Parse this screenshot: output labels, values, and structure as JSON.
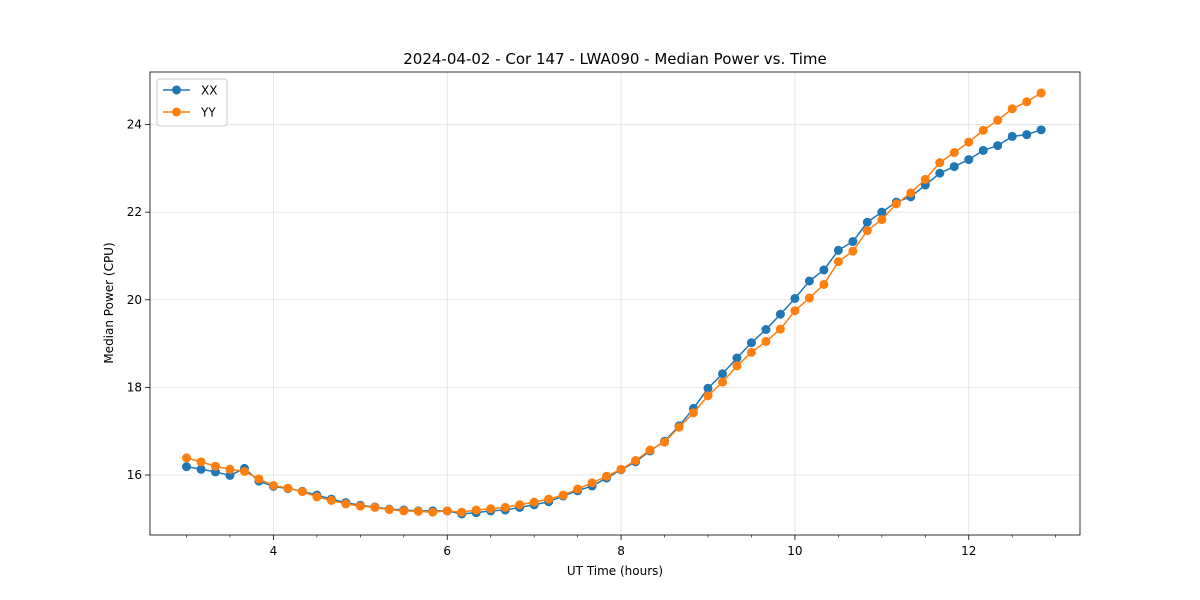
{
  "chart_data": {
    "type": "line",
    "title": "2024-04-02 - Cor 147 - LWA090 - Median Power vs. Time",
    "xlabel": "UT Time (hours)",
    "ylabel": "Median Power (CPU)",
    "xlim": [
      2.58,
      13.28
    ],
    "ylim": [
      14.63,
      25.2
    ],
    "xticks": [
      4,
      6,
      8,
      10,
      12
    ],
    "xtick_labels": [
      "4",
      "6",
      "8",
      "10",
      "12"
    ],
    "yticks": [
      16,
      18,
      20,
      22,
      24
    ],
    "ytick_labels": [
      "16",
      "18",
      "20",
      "22",
      "24"
    ],
    "grid": true,
    "legend_position": "top-left",
    "x": [
      3.0,
      3.167,
      3.333,
      3.5,
      3.667,
      3.833,
      4.0,
      4.167,
      4.333,
      4.5,
      4.667,
      4.833,
      5.0,
      5.167,
      5.333,
      5.5,
      5.667,
      5.833,
      6.0,
      6.167,
      6.333,
      6.5,
      6.667,
      6.833,
      7.0,
      7.167,
      7.333,
      7.5,
      7.667,
      7.833,
      8.0,
      8.167,
      8.333,
      8.5,
      8.667,
      8.833,
      9.0,
      9.167,
      9.333,
      9.5,
      9.667,
      9.833,
      10.0,
      10.167,
      10.333,
      10.5,
      10.667,
      10.833,
      11.0,
      11.167,
      11.333,
      11.5,
      11.667,
      11.833,
      12.0,
      12.167,
      12.333,
      12.5,
      12.667,
      12.833
    ],
    "series": [
      {
        "name": "XX",
        "color": "#1f77b4",
        "values": [
          16.19,
          16.13,
          16.07,
          15.99,
          16.15,
          15.86,
          15.74,
          15.69,
          15.63,
          15.54,
          15.45,
          15.37,
          15.31,
          15.27,
          15.22,
          15.2,
          15.18,
          15.18,
          15.18,
          15.11,
          15.14,
          15.18,
          15.2,
          15.26,
          15.32,
          15.39,
          15.52,
          15.64,
          15.75,
          15.93,
          16.12,
          16.3,
          16.55,
          16.77,
          17.12,
          17.52,
          17.98,
          18.31,
          18.67,
          19.02,
          19.32,
          19.67,
          20.03,
          20.43,
          20.68,
          21.13,
          21.33,
          21.77,
          22.0,
          22.23,
          22.35,
          22.62,
          22.89,
          23.04,
          23.2,
          23.41,
          23.52,
          23.73,
          23.77,
          23.88
        ]
      },
      {
        "name": "YY",
        "color": "#ff7f0e",
        "values": [
          16.39,
          16.3,
          16.2,
          16.13,
          16.08,
          15.91,
          15.76,
          15.7,
          15.62,
          15.5,
          15.42,
          15.34,
          15.29,
          15.26,
          15.21,
          15.18,
          15.17,
          15.15,
          15.18,
          15.15,
          15.2,
          15.23,
          15.26,
          15.32,
          15.38,
          15.45,
          15.54,
          15.68,
          15.82,
          15.97,
          16.13,
          16.33,
          16.57,
          16.75,
          17.09,
          17.42,
          17.81,
          18.12,
          18.49,
          18.8,
          19.05,
          19.33,
          19.75,
          20.04,
          20.35,
          20.87,
          21.11,
          21.58,
          21.83,
          22.19,
          22.44,
          22.75,
          23.13,
          23.36,
          23.6,
          23.87,
          24.1,
          24.36,
          24.52,
          24.72
        ]
      }
    ]
  }
}
